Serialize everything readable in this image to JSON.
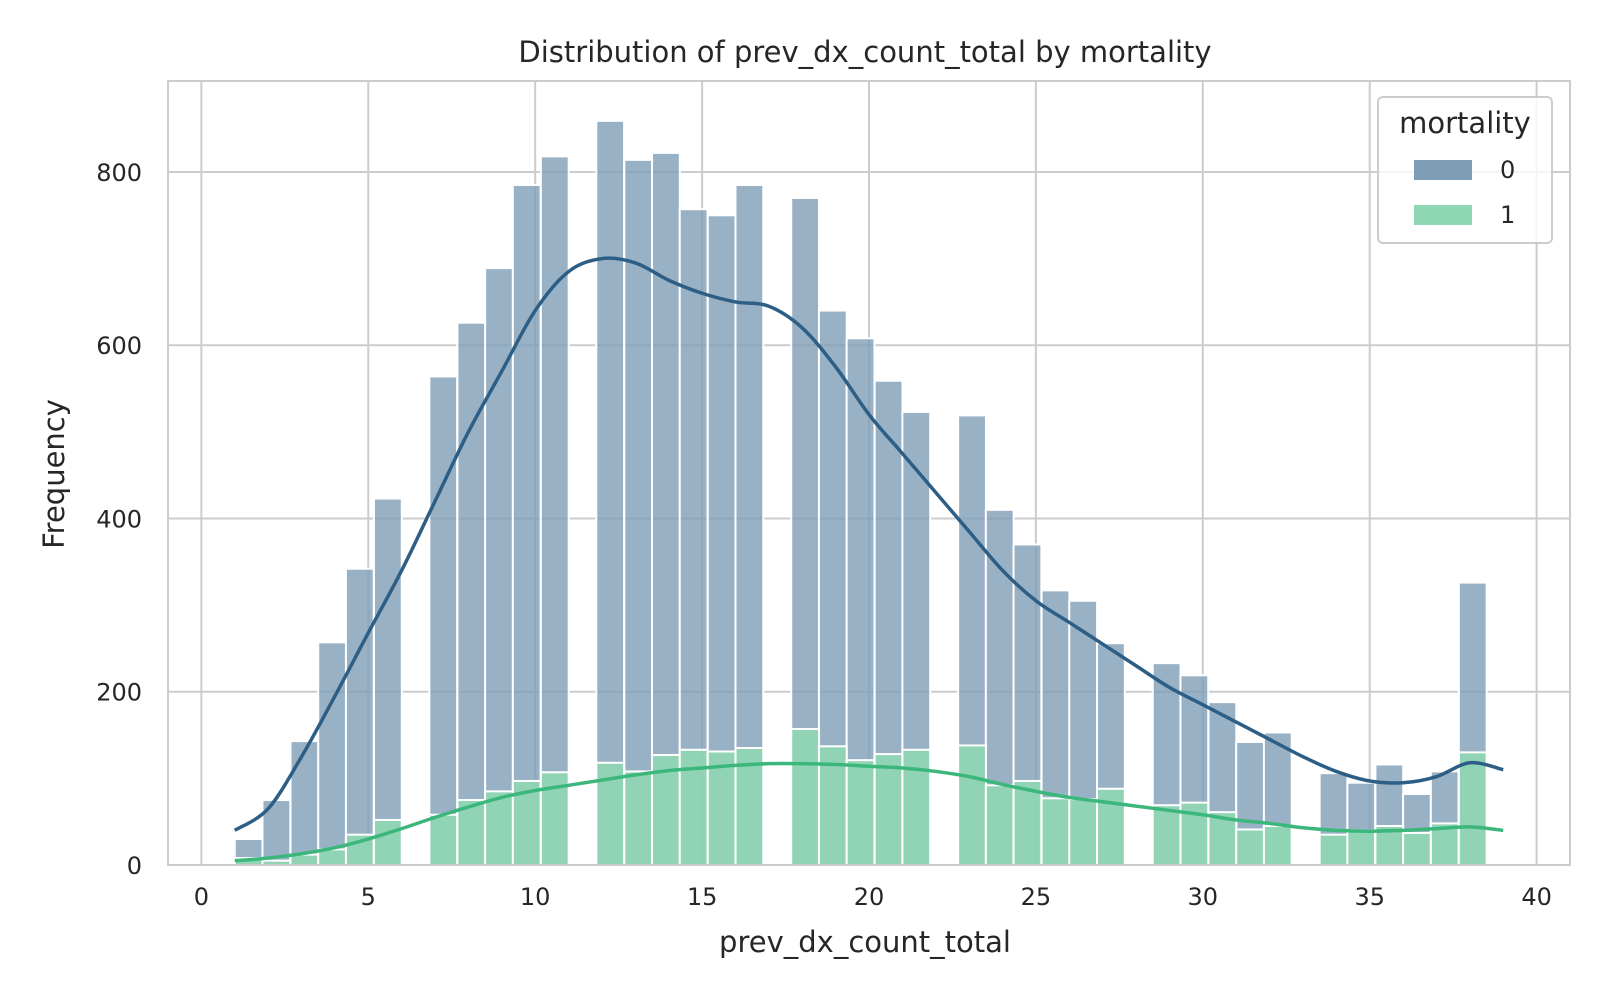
{
  "chart_data": {
    "type": "histogram",
    "title": "Distribution of prev_dx_count_total by mortality",
    "xlabel": "prev_dx_count_total",
    "ylabel": "Frequency",
    "xlim": [
      -1,
      41
    ],
    "ylim": [
      0,
      905
    ],
    "xticks": [
      0,
      5,
      10,
      15,
      20,
      25,
      30,
      35,
      40
    ],
    "yticks": [
      0,
      200,
      400,
      600,
      800
    ],
    "grid": true,
    "legend": {
      "title": "mortality",
      "position": "top-right"
    },
    "bin_width": 0.8333,
    "bins": [
      1.0,
      1.83,
      2.67,
      3.5,
      4.33,
      5.17,
      6.0,
      6.83,
      7.67,
      8.5,
      9.33,
      10.17,
      11.0,
      11.83,
      12.67,
      13.5,
      14.33,
      15.17,
      16.0,
      16.83,
      17.67,
      18.5,
      19.33,
      20.17,
      21.0,
      21.83,
      22.67,
      23.5,
      24.33,
      25.17,
      26.0,
      26.83,
      27.67,
      28.5,
      29.33,
      30.17,
      31.0,
      31.83,
      32.67,
      33.5,
      34.33,
      35.17,
      36.0,
      36.83,
      37.67,
      38.5
    ],
    "series": [
      {
        "name": "0",
        "color": "#2d5f86",
        "bar_color": "#7f9eb6",
        "values": [
          30,
          75,
          143,
          257,
          342,
          423,
          0,
          564,
          626,
          689,
          785,
          818,
          0,
          859,
          814,
          822,
          757,
          750,
          785,
          0,
          770,
          640,
          608,
          559,
          523,
          0,
          519,
          410,
          370,
          317,
          305,
          256,
          0,
          233,
          219,
          188,
          142,
          153,
          0,
          106,
          95,
          116,
          82,
          108,
          326
        ],
        "kde_x": [
          1,
          2,
          3,
          4,
          5,
          6,
          7,
          8,
          9,
          10,
          11,
          12,
          13,
          14,
          15,
          16,
          17,
          18,
          19,
          20,
          21,
          22,
          23,
          24,
          25,
          26,
          27,
          28,
          29,
          30,
          31,
          32,
          33,
          34,
          35,
          36,
          37,
          38,
          39
        ],
        "kde_y": [
          40,
          65,
          125,
          195,
          268,
          340,
          420,
          500,
          570,
          640,
          685,
          700,
          695,
          675,
          660,
          650,
          645,
          620,
          575,
          520,
          475,
          430,
          385,
          340,
          305,
          280,
          255,
          230,
          205,
          185,
          165,
          145,
          125,
          108,
          97,
          95,
          102,
          118,
          110
        ]
      },
      {
        "name": "1",
        "color": "#3bb77b",
        "bar_color": "#8fd7b2",
        "values": [
          8,
          5,
          12,
          18,
          35,
          52,
          0,
          58,
          75,
          85,
          97,
          107,
          0,
          118,
          108,
          127,
          133,
          131,
          135,
          0,
          157,
          137,
          121,
          128,
          133,
          0,
          138,
          92,
          97,
          77,
          76,
          88,
          0,
          69,
          72,
          61,
          41,
          45,
          0,
          35,
          40,
          45,
          37,
          48,
          130
        ],
        "kde_x": [
          1,
          2,
          3,
          4,
          5,
          6,
          7,
          8,
          9,
          10,
          11,
          12,
          13,
          14,
          15,
          16,
          17,
          18,
          19,
          20,
          21,
          22,
          23,
          24,
          25,
          26,
          27,
          28,
          29,
          30,
          31,
          32,
          33,
          34,
          35,
          36,
          37,
          38,
          39
        ],
        "kde_y": [
          5,
          8,
          13,
          20,
          30,
          42,
          55,
          67,
          78,
          86,
          92,
          98,
          104,
          109,
          112,
          115,
          117,
          117,
          116,
          114,
          112,
          108,
          102,
          93,
          85,
          78,
          73,
          68,
          63,
          58,
          52,
          48,
          43,
          40,
          39,
          40,
          42,
          44,
          40
        ]
      }
    ]
  }
}
